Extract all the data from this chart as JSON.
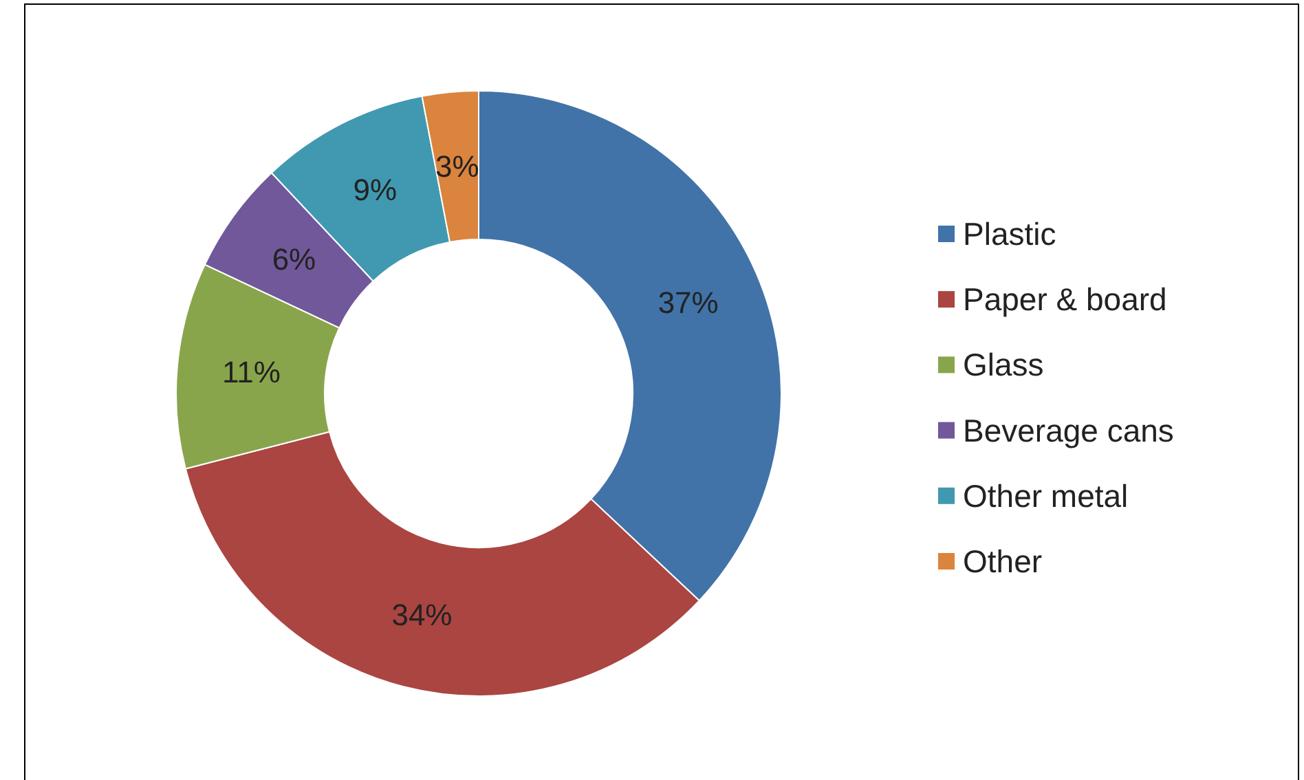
{
  "chart_data": {
    "type": "donut",
    "categories": [
      "Plastic",
      "Paper & board",
      "Glass",
      "Beverage cans",
      "Other metal",
      "Other"
    ],
    "values": [
      37,
      34,
      11,
      6,
      9,
      3
    ],
    "colors": [
      "#4173a8",
      "#aa4541",
      "#89a54c",
      "#71589a",
      "#4099b0",
      "#db843d"
    ],
    "value_labels": [
      "37%",
      "34%",
      "11%",
      "6%",
      "9%",
      "3%"
    ],
    "legend": "right"
  }
}
